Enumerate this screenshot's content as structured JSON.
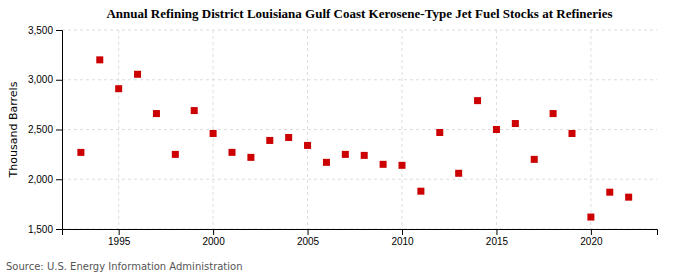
{
  "chart_data": {
    "type": "scatter",
    "title": "Annual Refining District Louisiana Gulf Coast Kerosene-Type Jet Fuel Stocks at Refineries",
    "ylabel": "Thousand Barrels",
    "source": "Source: U.S. Energy Information Administration",
    "x": [
      1993,
      1994,
      1995,
      1996,
      1997,
      1998,
      1999,
      2000,
      2001,
      2002,
      2003,
      2004,
      2005,
      2006,
      2007,
      2008,
      2009,
      2010,
      2011,
      2012,
      2013,
      2014,
      2015,
      2016,
      2017,
      2018,
      2019,
      2020,
      2021,
      2022
    ],
    "values": [
      2270,
      3200,
      2910,
      3055,
      2660,
      2250,
      2690,
      2460,
      2270,
      2220,
      2390,
      2420,
      2340,
      2170,
      2250,
      2240,
      2150,
      2140,
      1880,
      2470,
      2060,
      2790,
      2500,
      2560,
      2200,
      2660,
      2460,
      1620,
      1870,
      1820
    ],
    "color": "#cc0000",
    "marker": "square",
    "xlim": [
      1992.0,
      2023.5
    ],
    "xticks": [
      1995,
      2000,
      2005,
      2010,
      2015,
      2020
    ],
    "ylim": [
      1500,
      3500
    ],
    "yticks": [
      {
        "value": 1500,
        "label": "1,500"
      },
      {
        "value": 2000,
        "label": "2,000"
      },
      {
        "value": 2500,
        "label": "2,500"
      },
      {
        "value": 3000,
        "label": "3,000"
      },
      {
        "value": 3500,
        "label": "3,500"
      }
    ],
    "grid": true
  }
}
